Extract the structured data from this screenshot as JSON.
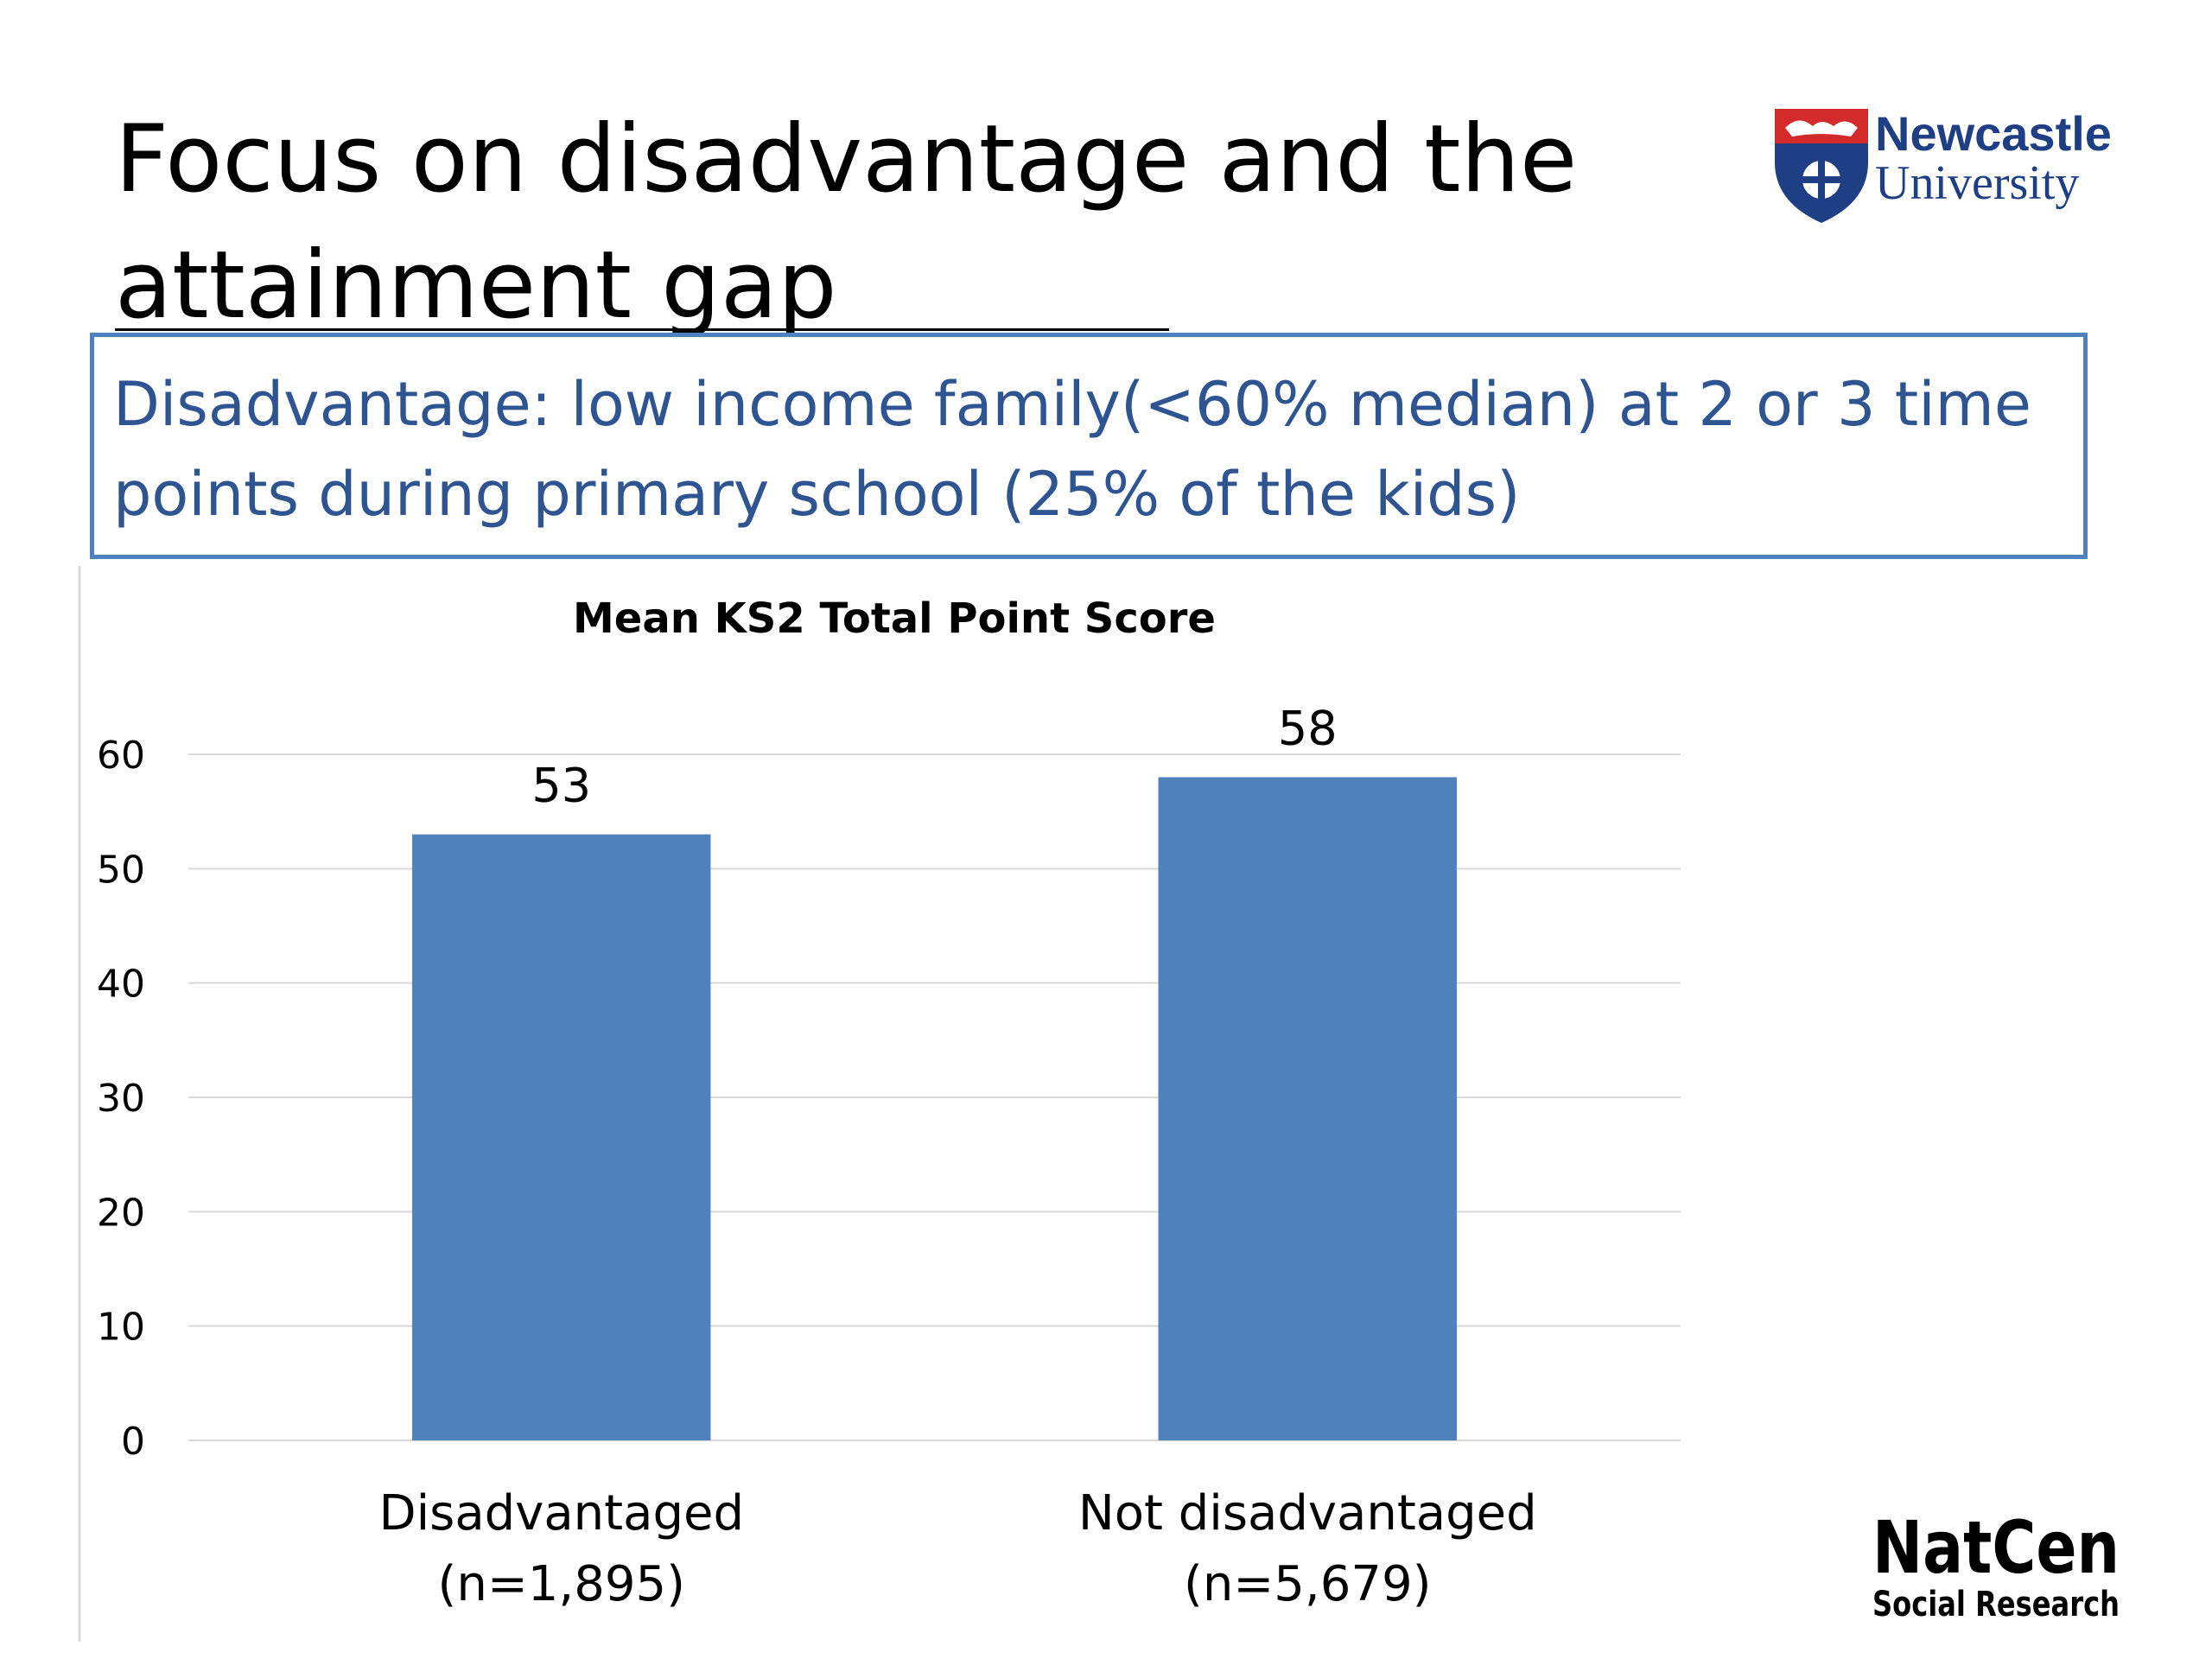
{
  "slide": {
    "title": "Focus on disadvantage and the attainment gap",
    "definition": "Disadvantage: low income family(<60% median) at 2 or 3 time points during primary school (25% of the kids)"
  },
  "logos": {
    "newcastle": {
      "line1": "Newcastle",
      "line2": "University"
    },
    "natcen": {
      "line1": "NatCen",
      "line2": "Social Research"
    }
  },
  "colors": {
    "bar": "#4f81bd",
    "box_border": "#4f81bd",
    "box_text": "#2e5591",
    "gridline": "#d9d9d9"
  },
  "chart_data": {
    "type": "bar",
    "title": "Mean KS2 Total Point Score",
    "categories": [
      [
        "Disadvantaged",
        "(n=1,895)"
      ],
      [
        "Not disadvantaged",
        "(n=5,679)"
      ]
    ],
    "values": [
      53,
      58
    ],
    "data_labels": [
      "53",
      "58"
    ],
    "ylim": [
      0,
      60
    ],
    "yticks": [
      0,
      10,
      20,
      30,
      40,
      50,
      60
    ],
    "grid": true,
    "legend": "none",
    "xlabel": "",
    "ylabel": ""
  }
}
